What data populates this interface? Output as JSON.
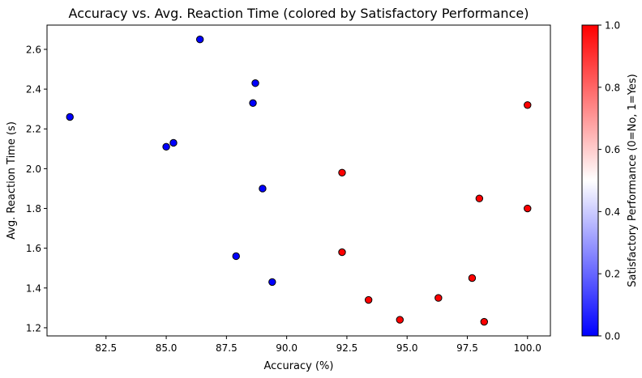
{
  "chart_data": {
    "type": "scatter",
    "title": "Accuracy vs. Avg. Reaction Time (colored by Satisfactory Performance)",
    "xlabel": "Accuracy (%)",
    "ylabel": "Avg. Reaction Time (s)",
    "xlim": [
      80.05,
      100.95
    ],
    "ylim": [
      1.159,
      2.722
    ],
    "xticks": [
      "82.5",
      "85.0",
      "87.5",
      "90.0",
      "92.5",
      "95.0",
      "97.5",
      "100.0"
    ],
    "yticks": [
      "1.2",
      "1.4",
      "1.6",
      "1.8",
      "2.0",
      "2.2",
      "2.4",
      "2.6"
    ],
    "points": [
      {
        "x": 81.0,
        "y": 2.26,
        "satisfactory": 0
      },
      {
        "x": 85.0,
        "y": 2.11,
        "satisfactory": 0
      },
      {
        "x": 85.3,
        "y": 2.13,
        "satisfactory": 0
      },
      {
        "x": 86.4,
        "y": 2.65,
        "satisfactory": 0
      },
      {
        "x": 87.9,
        "y": 1.56,
        "satisfactory": 0
      },
      {
        "x": 88.6,
        "y": 2.33,
        "satisfactory": 0
      },
      {
        "x": 88.7,
        "y": 2.43,
        "satisfactory": 0
      },
      {
        "x": 89.0,
        "y": 1.9,
        "satisfactory": 0
      },
      {
        "x": 89.4,
        "y": 1.43,
        "satisfactory": 0
      },
      {
        "x": 92.3,
        "y": 1.98,
        "satisfactory": 1
      },
      {
        "x": 92.3,
        "y": 1.58,
        "satisfactory": 1
      },
      {
        "x": 93.4,
        "y": 1.34,
        "satisfactory": 1
      },
      {
        "x": 94.7,
        "y": 1.24,
        "satisfactory": 1
      },
      {
        "x": 96.3,
        "y": 1.35,
        "satisfactory": 1
      },
      {
        "x": 97.7,
        "y": 1.45,
        "satisfactory": 1
      },
      {
        "x": 98.0,
        "y": 1.85,
        "satisfactory": 1
      },
      {
        "x": 98.2,
        "y": 1.23,
        "satisfactory": 1
      },
      {
        "x": 100.0,
        "y": 2.32,
        "satisfactory": 1
      },
      {
        "x": 100.0,
        "y": 1.8,
        "satisfactory": 1
      }
    ],
    "colorbar": {
      "label": "Satisfactory Performance (0=No, 1=Yes)",
      "ticks": [
        "0.0",
        "0.2",
        "0.4",
        "0.6",
        "0.8",
        "1.0"
      ],
      "range": [
        0,
        1
      ],
      "colormap": "bwr",
      "colors": {
        "low": "#0000ff",
        "mid": "#ffffff",
        "high": "#ff0000"
      }
    },
    "grid": false,
    "marker_edge_color": "#000000"
  }
}
